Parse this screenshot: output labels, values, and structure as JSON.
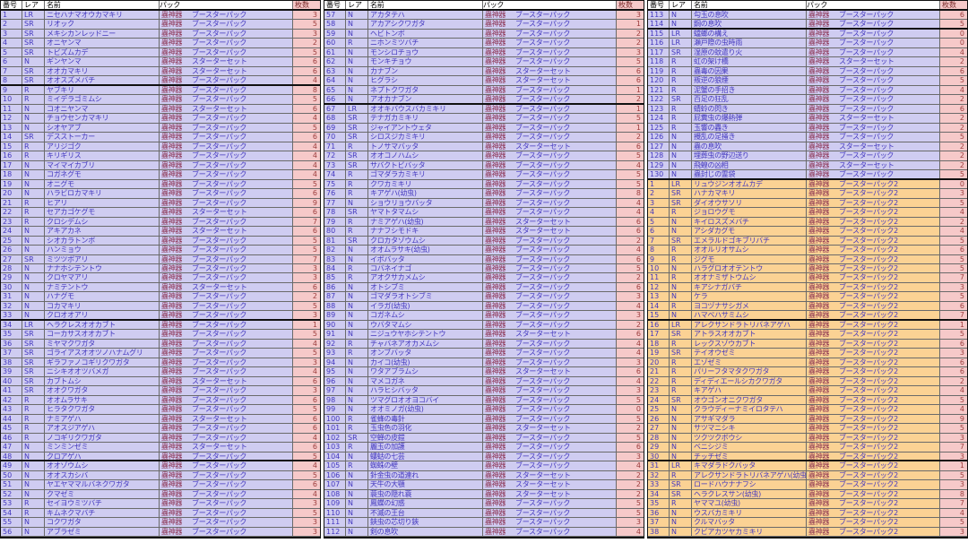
{
  "columns": {
    "number": "番号",
    "rarity": "レア",
    "name": "名前",
    "pack": "パック",
    "count": "枚数"
  },
  "pack_brand": "蟲神器",
  "pack_types": {
    "BP": "ブースターパック",
    "SS": "スターターセット",
    "BP2": "ブースターパック2"
  },
  "rarity_values": [
    "LR",
    "SR",
    "R",
    "N"
  ],
  "colors": {
    "row_purple": "#cfccf1",
    "row_orange": "#fbd294",
    "count_bg": "#f6c9c9",
    "text_main": "#4338bf",
    "text_brand": "#8b3050",
    "text_count": "#9c3c3c",
    "grid": "#6a6a6a",
    "heavy": "#111111",
    "header_bg": "#ffffff"
  },
  "tables": [
    {
      "thick_after": [
        7,
        32,
        47
      ],
      "orange_from": null,
      "rows": [
        [
          "1",
          "LR",
          "ニセハナマオウカマキリ",
          "BP",
          "3"
        ],
        [
          "2",
          "SR",
          "リオック",
          "BP",
          "5"
        ],
        [
          "3",
          "SR",
          "メキシカンレッドニー",
          "BP",
          "3"
        ],
        [
          "4",
          "SR",
          "オニヤンマ",
          "BP",
          "2"
        ],
        [
          "5",
          "SR",
          "トビズムカデ",
          "BP",
          "5"
        ],
        [
          "6",
          "N",
          "ギンヤンマ",
          "SS",
          "6"
        ],
        [
          "7",
          "SR",
          "オオカマキリ",
          "SS",
          "6"
        ],
        [
          "8",
          "SR",
          "オオスズメバチ",
          "BP",
          "4"
        ],
        [
          "9",
          "R",
          "ヤブキリ",
          "BP",
          "8"
        ],
        [
          "10",
          "R",
          "ミイデラゴミムシ",
          "BP",
          "5"
        ],
        [
          "11",
          "N",
          "コオニヤンマ",
          "SS",
          "6"
        ],
        [
          "12",
          "N",
          "チョウセンカマキリ",
          "BP",
          "4"
        ],
        [
          "13",
          "N",
          "シオヤアブ",
          "BP",
          "5"
        ],
        [
          "14",
          "SR",
          "デスストーカー",
          "BP",
          "6"
        ],
        [
          "15",
          "R",
          "アリジゴク",
          "BP",
          "4"
        ],
        [
          "16",
          "R",
          "キリギリス",
          "BP",
          "4"
        ],
        [
          "17",
          "N",
          "マイマイカブリ",
          "BP",
          "4"
        ],
        [
          "18",
          "N",
          "コガネグモ",
          "BP",
          "4"
        ],
        [
          "19",
          "N",
          "オニグモ",
          "BP",
          "5"
        ],
        [
          "20",
          "N",
          "ハラビロカマキリ",
          "BP",
          "6"
        ],
        [
          "21",
          "R",
          "ヒアリ",
          "BP",
          "9"
        ],
        [
          "22",
          "R",
          "セアカゴケグモ",
          "SS",
          "6"
        ],
        [
          "23",
          "R",
          "クロシデムシ",
          "BP",
          "7"
        ],
        [
          "24",
          "N",
          "アキアカネ",
          "SS",
          "6"
        ],
        [
          "25",
          "N",
          "シオカラトンボ",
          "BP",
          "5"
        ],
        [
          "26",
          "N",
          "ハンミョウ",
          "BP",
          "5"
        ],
        [
          "27",
          "SR",
          "ミツツボアリ",
          "BP",
          "7"
        ],
        [
          "28",
          "N",
          "ナナホシテントウ",
          "BP",
          "3"
        ],
        [
          "29",
          "N",
          "クロヤマアリ",
          "BP",
          "3"
        ],
        [
          "30",
          "N",
          "ナミテントウ",
          "SS",
          "6"
        ],
        [
          "31",
          "N",
          "ハナグモ",
          "BP",
          "2"
        ],
        [
          "32",
          "N",
          "コカマキリ",
          "BP",
          "5"
        ],
        [
          "33",
          "N",
          "クロオオアリ",
          "BP",
          "3"
        ],
        [
          "34",
          "LR",
          "ヘラクレスオオカブト",
          "BP",
          "1"
        ],
        [
          "35",
          "SR",
          "コーカサスオオカブト",
          "BP",
          "5"
        ],
        [
          "36",
          "SR",
          "ミヤマクワガタ",
          "BP",
          "4"
        ],
        [
          "37",
          "SR",
          "ゴライアスオオツノハナムグリ",
          "BP",
          "5"
        ],
        [
          "38",
          "SR",
          "ギラファノコギリクワガタ",
          "BP",
          "3"
        ],
        [
          "39",
          "SR",
          "ニシキオオツバメガ",
          "BP",
          "4"
        ],
        [
          "40",
          "SR",
          "カブトムシ",
          "SS",
          "6"
        ],
        [
          "41",
          "SR",
          "オオクワガタ",
          "BP",
          "3"
        ],
        [
          "42",
          "R",
          "オオムラサキ",
          "BP",
          "6"
        ],
        [
          "43",
          "R",
          "ヒラタクワガタ",
          "BP",
          "5"
        ],
        [
          "44",
          "R",
          "ナミアゲハ",
          "SS",
          "6"
        ],
        [
          "45",
          "R",
          "アオスジアゲハ",
          "BP",
          "6"
        ],
        [
          "46",
          "R",
          "ノコギリクワガタ",
          "BP",
          "4"
        ],
        [
          "47",
          "N",
          "ミンミンゼミ",
          "SS",
          "6"
        ],
        [
          "48",
          "N",
          "クロアゲハ",
          "BP",
          "5"
        ],
        [
          "49",
          "N",
          "オオゾウムシ",
          "BP",
          "4"
        ],
        [
          "50",
          "N",
          "オオスカシバ",
          "BP",
          "5"
        ],
        [
          "51",
          "N",
          "ヤエヤママルバネクワガタ",
          "BP",
          "6"
        ],
        [
          "52",
          "N",
          "クマゼミ",
          "BP",
          "4"
        ],
        [
          "53",
          "R",
          "セイヨウミツバチ",
          "BP",
          "3"
        ],
        [
          "54",
          "R",
          "キムネクマバチ",
          "BP",
          "5"
        ],
        [
          "55",
          "N",
          "コクワガタ",
          "BP",
          "3"
        ],
        [
          "56",
          "N",
          "アブラゼミ",
          "BP",
          "3"
        ]
      ]
    },
    {
      "thick_after": [
        9
      ],
      "orange_from": null,
      "rows": [
        [
          "57",
          "N",
          "アカタテハ",
          "BP",
          "3"
        ],
        [
          "58",
          "N",
          "アカアシクワガタ",
          "BP",
          "1"
        ],
        [
          "59",
          "N",
          "ヘビトンボ",
          "BP",
          "2"
        ],
        [
          "60",
          "R",
          "ニホンミツバチ",
          "BP",
          "2"
        ],
        [
          "61",
          "N",
          "モンシロチョウ",
          "BP",
          "3"
        ],
        [
          "62",
          "N",
          "モンキチョウ",
          "BP",
          "5"
        ],
        [
          "63",
          "N",
          "カナブン",
          "SS",
          "6"
        ],
        [
          "64",
          "N",
          "ヒグラシ",
          "SS",
          "6"
        ],
        [
          "65",
          "N",
          "ネプトクワガタ",
          "BP",
          "1"
        ],
        [
          "66",
          "N",
          "アオカナブン",
          "BP",
          "2"
        ],
        [
          "67",
          "LR",
          "オオキバウスバカミキリ",
          "BP",
          "1"
        ],
        [
          "68",
          "SR",
          "テナガカミキリ",
          "BP",
          "5"
        ],
        [
          "69",
          "SR",
          "ジャイアントウェタ",
          "BP",
          "1"
        ],
        [
          "70",
          "SR",
          "シロスジカミキリ",
          "BP",
          "2"
        ],
        [
          "71",
          "R",
          "トノサマバッタ",
          "SS",
          "6"
        ],
        [
          "72",
          "SR",
          "オオコノハムシ",
          "BP",
          "5"
        ],
        [
          "73",
          "SR",
          "サバクトビバッタ",
          "BP",
          "4"
        ],
        [
          "74",
          "R",
          "ゴマダラカミキリ",
          "BP",
          "5"
        ],
        [
          "75",
          "R",
          "クワカミキリ",
          "BP",
          "5"
        ],
        [
          "76",
          "R",
          "キアゲハ(幼虫)",
          "BP",
          "8"
        ],
        [
          "77",
          "N",
          "ショウリョウバッタ",
          "BP",
          "4"
        ],
        [
          "78",
          "SR",
          "ヤマトタマムシ",
          "BP",
          "4"
        ],
        [
          "79",
          "R",
          "ナミアゲハ(幼虫)",
          "SS",
          "6"
        ],
        [
          "80",
          "R",
          "ナナフシモドキ",
          "SS",
          "6"
        ],
        [
          "81",
          "SR",
          "クロカタゾウムシ",
          "BP",
          "2"
        ],
        [
          "82",
          "N",
          "オオムラサキ(幼虫)",
          "BP",
          "4"
        ],
        [
          "83",
          "N",
          "イボバッタ",
          "BP",
          "6"
        ],
        [
          "84",
          "R",
          "コバネイナゴ",
          "BP",
          "5"
        ],
        [
          "85",
          "R",
          "アオクサカメムシ",
          "BP",
          "2"
        ],
        [
          "86",
          "N",
          "オトシブミ",
          "BP",
          "6"
        ],
        [
          "87",
          "N",
          "ゴマダラオトシブミ",
          "BP",
          "3"
        ],
        [
          "88",
          "N",
          "イラガ(幼虫)",
          "BP",
          "4"
        ],
        [
          "89",
          "N",
          "コガネムシ",
          "BP",
          "3"
        ],
        [
          "90",
          "N",
          "ウバタマムシ",
          "BP",
          "2"
        ],
        [
          "91",
          "N",
          "ニジュウヤホシテントウ",
          "SS",
          "6"
        ],
        [
          "92",
          "R",
          "チャバネアオカメムシ",
          "BP",
          "4"
        ],
        [
          "93",
          "R",
          "オンブバッタ",
          "BP",
          "4"
        ],
        [
          "94",
          "N",
          "カイコ(幼虫)",
          "BP",
          "3"
        ],
        [
          "95",
          "N",
          "ワタアブラムシ",
          "SS",
          "6"
        ],
        [
          "96",
          "N",
          "マメコガネ",
          "BP",
          "4"
        ],
        [
          "97",
          "N",
          "ハラヒシバッタ",
          "BP",
          "3"
        ],
        [
          "98",
          "N",
          "ツマグロオオヨコバイ",
          "BP",
          "5"
        ],
        [
          "99",
          "N",
          "オオミノガ(幼虫)",
          "BP",
          "0"
        ],
        [
          "100",
          "R",
          "雀蜂の毒針",
          "BP",
          "5"
        ],
        [
          "101",
          "R",
          "玉虫色の羽化",
          "SS",
          "2"
        ],
        [
          "102",
          "SR",
          "空蝉の皮鎧",
          "BP",
          "5"
        ],
        [
          "103",
          "R",
          "麗玉の加護",
          "BP",
          "6"
        ],
        [
          "104",
          "N",
          "螻蛄の七芸",
          "BP",
          "3"
        ],
        [
          "105",
          "R",
          "蜘蛛の壁",
          "BP",
          "4"
        ],
        [
          "106",
          "N",
          "針金虫の道連れ",
          "SS",
          "2"
        ],
        [
          "107",
          "N",
          "天牛の大顎",
          "SS",
          "2"
        ],
        [
          "108",
          "N",
          "蓑虫の隠れ蓑",
          "SS",
          "2"
        ],
        [
          "109",
          "N",
          "鳳蝶の幻惑",
          "BP",
          "5"
        ],
        [
          "110",
          "N",
          "不滅の王台",
          "BP",
          "5"
        ],
        [
          "111",
          "N",
          "鋏虫の芯切り鋏",
          "BP",
          "3"
        ],
        [
          "112",
          "N",
          "剣の息吹",
          "BP",
          "4"
        ]
      ]
    },
    {
      "thick_after": [
        1,
        17,
        32,
        47
      ],
      "orange_from": 18,
      "rows": [
        [
          "113",
          "N",
          "勾玉の息吹",
          "BP",
          "6"
        ],
        [
          "114",
          "N",
          "鋼の息吹",
          "BP",
          "5"
        ],
        [
          "115",
          "LR",
          "蟷螂の構え",
          "BP",
          "0"
        ],
        [
          "116",
          "LR",
          "瀬戸際の虫時雨",
          "BP",
          "0"
        ],
        [
          "117",
          "SR",
          "湿原の蚊遣り火",
          "BP",
          "4"
        ],
        [
          "118",
          "R",
          "虹の架け橋",
          "SS",
          "2"
        ],
        [
          "119",
          "R",
          "蟲毒の因果",
          "BP",
          "6"
        ],
        [
          "120",
          "R",
          "叛逆の狼煙",
          "BP",
          "5"
        ],
        [
          "121",
          "R",
          "泥蟹の手招き",
          "BP",
          "4"
        ],
        [
          "122",
          "SR",
          "百足の狂乱",
          "BP",
          "2"
        ],
        [
          "123",
          "R",
          "蜻蛉の閃き",
          "BP",
          "6"
        ],
        [
          "124",
          "R",
          "屁糞虫の爆熱弾",
          "SS",
          "2"
        ],
        [
          "125",
          "R",
          "玉響の轟き",
          "BP",
          "2"
        ],
        [
          "126",
          "N",
          "攪乱の足掻き",
          "BP",
          "5"
        ],
        [
          "127",
          "N",
          "蟲の息吹",
          "SS",
          "2"
        ],
        [
          "128",
          "N",
          "埋葬虫の野辺送り",
          "BP",
          "2"
        ],
        [
          "129",
          "N",
          "飛蝗の凶相",
          "SS",
          "2"
        ],
        [
          "130",
          "N",
          "蟲封じの霊袋",
          "BP",
          "5"
        ],
        [
          "1",
          "LR",
          "リュウジンオオムカデ",
          "BP2",
          "0"
        ],
        [
          "2",
          "SR",
          "ハナカマキリ",
          "BP2",
          "3"
        ],
        [
          "3",
          "SR",
          "ダイオウサソリ",
          "BP2",
          "5"
        ],
        [
          "4",
          "R",
          "ジョロウグモ",
          "BP2",
          "4"
        ],
        [
          "5",
          "N",
          "キイロスズメバチ",
          "BP2",
          "2"
        ],
        [
          "6",
          "N",
          "アシダカグモ",
          "BP2",
          "4"
        ],
        [
          "7",
          "SR",
          "エメラルドゴキブリバチ",
          "BP2",
          "5"
        ],
        [
          "8",
          "R",
          "オオルリオサムシ",
          "BP2",
          "6"
        ],
        [
          "9",
          "R",
          "ジグモ",
          "BP2",
          "5"
        ],
        [
          "10",
          "N",
          "ハラグロオオテントウ",
          "BP2",
          "5"
        ],
        [
          "11",
          "R",
          "オオナミザトウムシ",
          "BP2",
          "7"
        ],
        [
          "12",
          "N",
          "キアシナガバチ",
          "BP2",
          "3"
        ],
        [
          "13",
          "N",
          "ケラ",
          "BP2",
          "5"
        ],
        [
          "14",
          "R",
          "ヨコヅナサシガメ",
          "BP2",
          "6"
        ],
        [
          "15",
          "N",
          "ハマベハサミムシ",
          "BP2",
          "7"
        ],
        [
          "16",
          "LR",
          "アレクサンドラトリバネアゲハ",
          "BP2",
          "1"
        ],
        [
          "17",
          "SR",
          "アトラスオオカブト",
          "BP2",
          "5"
        ],
        [
          "18",
          "R",
          "レックスゾウカブト",
          "BP2",
          "6"
        ],
        [
          "19",
          "SR",
          "テイオウゼミ",
          "BP2",
          "3"
        ],
        [
          "20",
          "R",
          "エゾゼミ",
          "BP2",
          "6"
        ],
        [
          "21",
          "R",
          "パリーフタマタクワガタ",
          "BP2",
          "6"
        ],
        [
          "22",
          "R",
          "ディディエールシカクワガタ",
          "BP2",
          "2"
        ],
        [
          "23",
          "R",
          "キアゲハ",
          "BP2",
          "4"
        ],
        [
          "24",
          "SR",
          "オウゴンオニクワガタ",
          "BP2",
          "5"
        ],
        [
          "25",
          "N",
          "クラウディーナミイロタテハ",
          "BP2",
          "4"
        ],
        [
          "26",
          "N",
          "アサギマダラ",
          "BP2",
          "9"
        ],
        [
          "27",
          "N",
          "サツマニシキ",
          "BP2",
          "5"
        ],
        [
          "28",
          "N",
          "ツクツクボウシ",
          "BP2",
          "3"
        ],
        [
          "29",
          "N",
          "ベニシジミ",
          "BP2",
          "7"
        ],
        [
          "30",
          "N",
          "チッチゼミ",
          "BP2",
          "3"
        ],
        [
          "31",
          "LR",
          "キマダラドクバッタ",
          "BP2",
          "1"
        ],
        [
          "32",
          "R",
          "アレクサンドラトリバネアゲハ(幼虫)",
          "BP2",
          "5"
        ],
        [
          "33",
          "SR",
          "ロードハウナナフシ",
          "BP2",
          "3"
        ],
        [
          "34",
          "SR",
          "ヘラクレスサン(幼虫)",
          "BP2",
          "8"
        ],
        [
          "35",
          "R",
          "ヤママユ(幼虫)",
          "BP2",
          "7"
        ],
        [
          "36",
          "N",
          "ウスバカミキリ",
          "BP2",
          "4"
        ],
        [
          "37",
          "N",
          "クルマバッタ",
          "BP2",
          "5"
        ],
        [
          "38",
          "N",
          "クビアカツヤカミキリ",
          "BP2",
          "3"
        ]
      ]
    }
  ]
}
